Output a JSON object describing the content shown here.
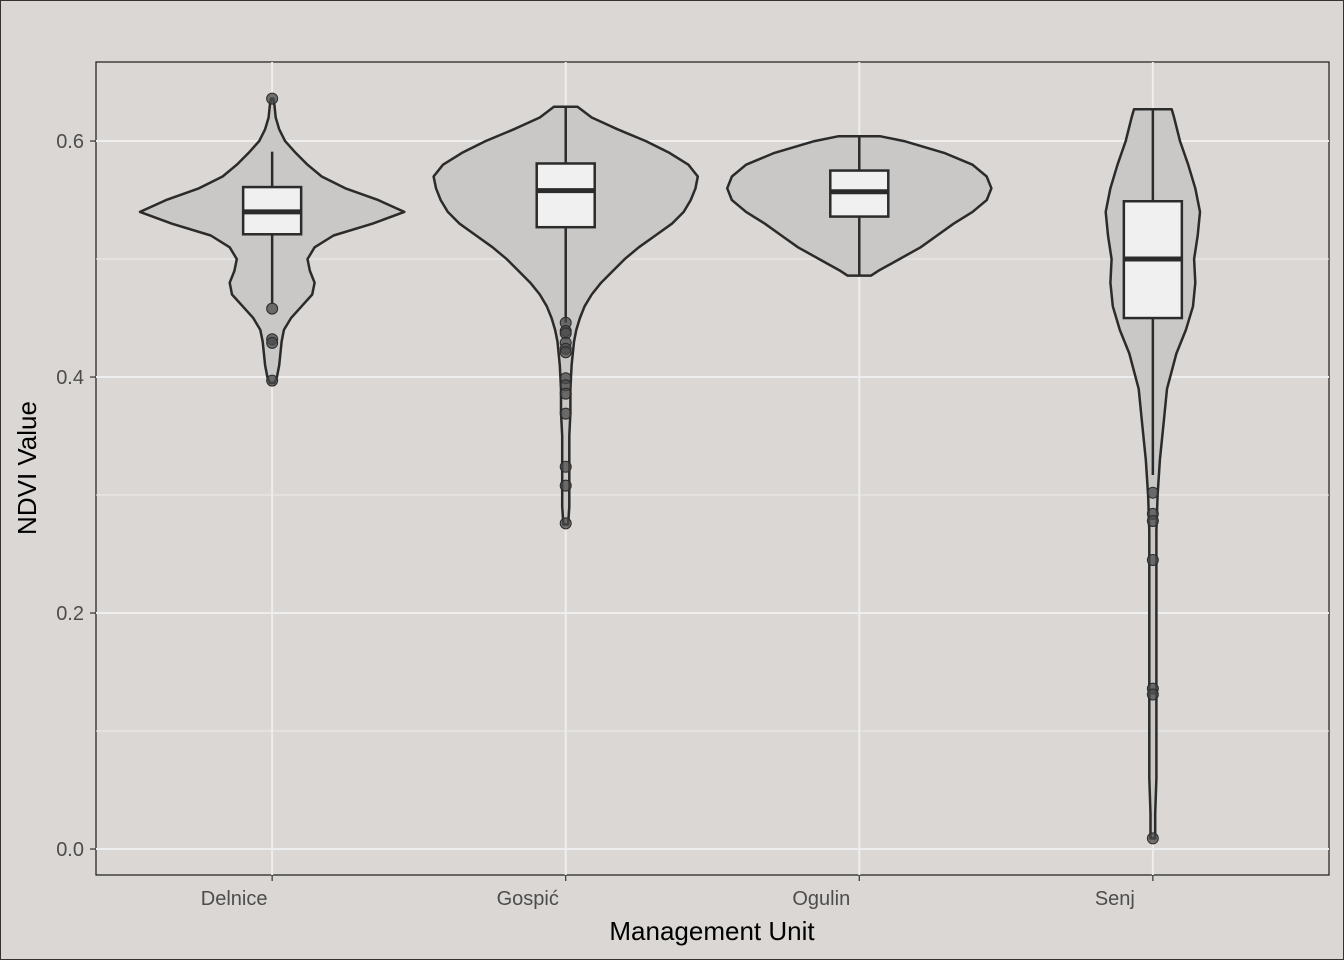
{
  "chart_data": {
    "type": "violin",
    "title": "",
    "xlabel": "Management Unit",
    "ylabel": "NDVI Value",
    "ylim": [
      -0.022,
      0.667
    ],
    "y_ticks": [
      0.0,
      0.2,
      0.4,
      0.6
    ],
    "y_tick_labels": [
      "0.0",
      "0.2",
      "0.4",
      "0.6"
    ],
    "grid": true,
    "legend": "none",
    "categories": [
      "Delnice",
      "Gospić",
      "Ogulin",
      "Senj"
    ],
    "colors": {
      "background": "#dad7d4",
      "violin_fill": "#c9c8c6",
      "box_fill": "#f0f0f0",
      "line": "#2b2b2b",
      "grid": "#eeeeee",
      "outlier": "#4a4a4a"
    },
    "series": [
      {
        "name": "Delnice",
        "box": {
          "whisker_low": 0.462,
          "q1": 0.521,
          "median": 0.54,
          "q3": 0.561,
          "whisker_high": 0.591
        },
        "violin": {
          "min": 0.395,
          "max": 0.636,
          "profile": [
            [
              0.395,
              0.002
            ],
            [
              0.4,
              0.004
            ],
            [
              0.41,
              0.006
            ],
            [
              0.42,
              0.007
            ],
            [
              0.43,
              0.008
            ],
            [
              0.44,
              0.01
            ],
            [
              0.45,
              0.016
            ],
            [
              0.46,
              0.025
            ],
            [
              0.47,
              0.034
            ],
            [
              0.48,
              0.036
            ],
            [
              0.49,
              0.032
            ],
            [
              0.5,
              0.03
            ],
            [
              0.51,
              0.036
            ],
            [
              0.52,
              0.052
            ],
            [
              0.53,
              0.085
            ],
            [
              0.54,
              0.112
            ],
            [
              0.55,
              0.09
            ],
            [
              0.56,
              0.062
            ],
            [
              0.57,
              0.042
            ],
            [
              0.58,
              0.03
            ],
            [
              0.59,
              0.02
            ],
            [
              0.6,
              0.011
            ],
            [
              0.61,
              0.006
            ],
            [
              0.62,
              0.003
            ],
            [
              0.63,
              0.002
            ],
            [
              0.636,
              0.001
            ]
          ]
        },
        "outliers": [
          0.636,
          0.458,
          0.432,
          0.429,
          0.397
        ]
      },
      {
        "name": "Gospić",
        "box": {
          "whisker_low": 0.446,
          "q1": 0.527,
          "median": 0.558,
          "q3": 0.581,
          "whisker_high": 0.629
        },
        "violin": {
          "min": 0.275,
          "max": 0.629,
          "profile": [
            [
              0.275,
              0.002
            ],
            [
              0.29,
              0.003
            ],
            [
              0.31,
              0.003
            ],
            [
              0.33,
              0.003
            ],
            [
              0.35,
              0.003
            ],
            [
              0.37,
              0.004
            ],
            [
              0.39,
              0.004
            ],
            [
              0.41,
              0.005
            ],
            [
              0.43,
              0.007
            ],
            [
              0.44,
              0.009
            ],
            [
              0.45,
              0.012
            ],
            [
              0.46,
              0.016
            ],
            [
              0.47,
              0.022
            ],
            [
              0.48,
              0.03
            ],
            [
              0.49,
              0.04
            ],
            [
              0.5,
              0.05
            ],
            [
              0.51,
              0.062
            ],
            [
              0.52,
              0.076
            ],
            [
              0.53,
              0.09
            ],
            [
              0.54,
              0.1
            ],
            [
              0.55,
              0.106
            ],
            [
              0.56,
              0.11
            ],
            [
              0.57,
              0.112
            ],
            [
              0.58,
              0.104
            ],
            [
              0.59,
              0.088
            ],
            [
              0.6,
              0.068
            ],
            [
              0.61,
              0.044
            ],
            [
              0.62,
              0.022
            ],
            [
              0.629,
              0.01
            ]
          ]
        },
        "outliers": [
          0.446,
          0.439,
          0.437,
          0.429,
          0.424,
          0.421,
          0.399,
          0.393,
          0.386,
          0.369,
          0.324,
          0.308,
          0.276
        ]
      },
      {
        "name": "Ogulin",
        "box": {
          "whisker_low": 0.486,
          "q1": 0.536,
          "median": 0.557,
          "q3": 0.575,
          "whisker_high": 0.604
        },
        "violin": {
          "min": 0.486,
          "max": 0.604,
          "profile": [
            [
              0.486,
              0.01
            ],
            [
              0.49,
              0.016
            ],
            [
              0.5,
              0.034
            ],
            [
              0.51,
              0.052
            ],
            [
              0.52,
              0.066
            ],
            [
              0.53,
              0.08
            ],
            [
              0.54,
              0.096
            ],
            [
              0.55,
              0.108
            ],
            [
              0.56,
              0.112
            ],
            [
              0.57,
              0.108
            ],
            [
              0.58,
              0.096
            ],
            [
              0.59,
              0.072
            ],
            [
              0.6,
              0.038
            ],
            [
              0.604,
              0.018
            ]
          ]
        },
        "outliers": []
      },
      {
        "name": "Senj",
        "box": {
          "whisker_low": 0.317,
          "q1": 0.45,
          "median": 0.5,
          "q3": 0.549,
          "whisker_high": 0.627
        },
        "violin": {
          "min": 0.009,
          "max": 0.627,
          "profile": [
            [
              0.009,
              0.002
            ],
            [
              0.03,
              0.002
            ],
            [
              0.06,
              0.003
            ],
            [
              0.09,
              0.003
            ],
            [
              0.12,
              0.003
            ],
            [
              0.15,
              0.003
            ],
            [
              0.18,
              0.003
            ],
            [
              0.21,
              0.003
            ],
            [
              0.24,
              0.003
            ],
            [
              0.27,
              0.003
            ],
            [
              0.3,
              0.004
            ],
            [
              0.33,
              0.006
            ],
            [
              0.36,
              0.009
            ],
            [
              0.39,
              0.012
            ],
            [
              0.42,
              0.02
            ],
            [
              0.44,
              0.028
            ],
            [
              0.46,
              0.034
            ],
            [
              0.48,
              0.036
            ],
            [
              0.5,
              0.035
            ],
            [
              0.52,
              0.038
            ],
            [
              0.54,
              0.04
            ],
            [
              0.56,
              0.036
            ],
            [
              0.58,
              0.03
            ],
            [
              0.6,
              0.023
            ],
            [
              0.62,
              0.018
            ],
            [
              0.627,
              0.016
            ]
          ]
        },
        "outliers": [
          0.302,
          0.284,
          0.278,
          0.245,
          0.136,
          0.131,
          0.009
        ]
      }
    ]
  }
}
